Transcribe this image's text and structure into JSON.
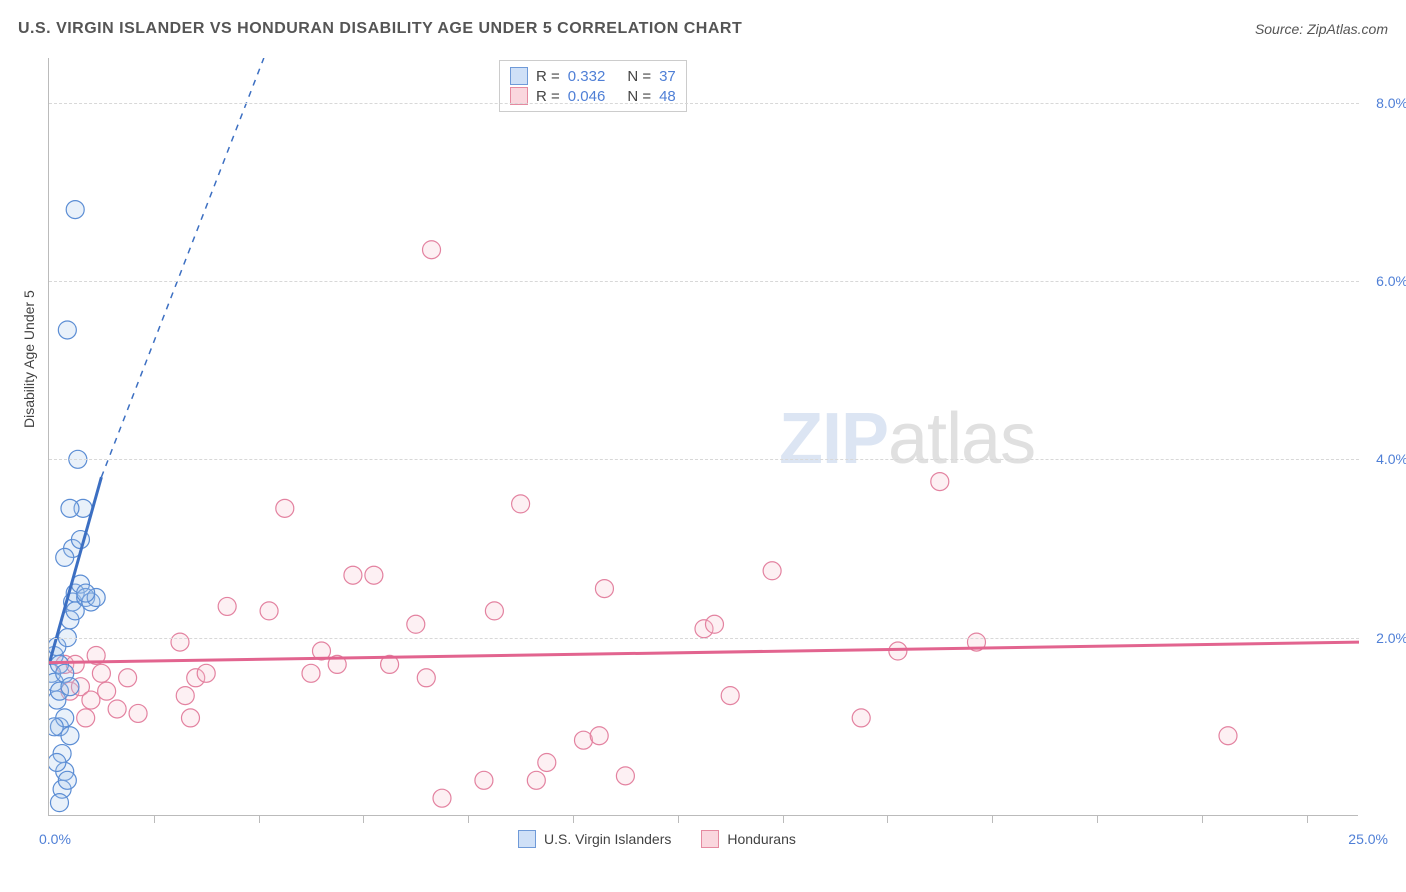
{
  "header": {
    "title": "U.S. VIRGIN ISLANDER VS HONDURAN DISABILITY AGE UNDER 5 CORRELATION CHART",
    "source": "Source: ZipAtlas.com"
  },
  "chart": {
    "type": "scatter",
    "background_color": "#ffffff",
    "grid_color": "#d8d8d8",
    "axis_color": "#bbbbbb",
    "label_color": "#424242",
    "tick_label_color": "#4f7fd6",
    "ylabel": "Disability Age Under 5",
    "label_fontsize": 14,
    "xlim": [
      0,
      25
    ],
    "ylim": [
      0,
      8.5
    ],
    "y_ticks": [
      2.0,
      4.0,
      6.0,
      8.0
    ],
    "y_tick_labels": [
      "2.0%",
      "4.0%",
      "6.0%",
      "8.0%"
    ],
    "x_min_label": "0.0%",
    "x_max_label": "25.0%",
    "x_tick_positions": [
      2,
      4,
      6,
      8,
      10,
      12,
      14,
      16,
      18,
      20,
      22,
      24
    ],
    "marker_radius": 9,
    "marker_stroke_width": 1.2,
    "marker_fill_opacity": 0.25,
    "trend_line_width": 3,
    "watermark": {
      "text_bold": "ZIP",
      "text_rest": "atlas"
    }
  },
  "stats_legend": {
    "rows": [
      {
        "swatch_fill": "#cfe0f7",
        "swatch_border": "#6f9ad8",
        "r_label": "R  =",
        "r_val": "0.332",
        "n_label": "N  =",
        "n_val": "37"
      },
      {
        "swatch_fill": "#fad7de",
        "swatch_border": "#e58aa0",
        "r_label": "R  =",
        "r_val": "0.046",
        "n_label": "N  =",
        "n_val": "48"
      }
    ]
  },
  "series_legend": {
    "items": [
      {
        "swatch_fill": "#cfe0f7",
        "swatch_border": "#6f9ad8",
        "label": "U.S. Virgin Islanders"
      },
      {
        "swatch_fill": "#fad7de",
        "swatch_border": "#e58aa0",
        "label": "Hondurans"
      }
    ]
  },
  "series": [
    {
      "name": "U.S. Virgin Islanders",
      "fill": "#a9c7ec",
      "stroke": "#5b8dd4",
      "trend_color": "#3c6fc2",
      "trend": {
        "x1": 0.0,
        "y1": 1.7,
        "x2_solid": 1.0,
        "y2_solid": 3.8,
        "x2_dash": 4.1,
        "y2_dash": 8.5
      },
      "points": [
        [
          0.05,
          1.6
        ],
        [
          0.1,
          1.5
        ],
        [
          0.1,
          1.8
        ],
        [
          0.15,
          1.3
        ],
        [
          0.15,
          1.9
        ],
        [
          0.2,
          1.0
        ],
        [
          0.2,
          1.4
        ],
        [
          0.2,
          1.7
        ],
        [
          0.25,
          0.3
        ],
        [
          0.25,
          0.7
        ],
        [
          0.3,
          0.5
        ],
        [
          0.3,
          1.1
        ],
        [
          0.3,
          1.6
        ],
        [
          0.35,
          0.4
        ],
        [
          0.35,
          2.0
        ],
        [
          0.4,
          0.9
        ],
        [
          0.4,
          2.2
        ],
        [
          0.45,
          2.4
        ],
        [
          0.45,
          3.0
        ],
        [
          0.5,
          2.3
        ],
        [
          0.5,
          2.5
        ],
        [
          0.6,
          2.6
        ],
        [
          0.6,
          3.1
        ],
        [
          0.65,
          3.45
        ],
        [
          0.7,
          2.45
        ],
        [
          0.8,
          2.4
        ],
        [
          0.4,
          3.45
        ],
        [
          0.35,
          5.45
        ],
        [
          0.9,
          2.45
        ],
        [
          0.55,
          4.0
        ],
        [
          0.7,
          2.5
        ],
        [
          0.3,
          2.9
        ],
        [
          0.5,
          6.8
        ],
        [
          0.2,
          0.15
        ],
        [
          0.15,
          0.6
        ],
        [
          0.1,
          1.0
        ],
        [
          0.4,
          1.45
        ]
      ]
    },
    {
      "name": "Hondurans",
      "fill": "#f6c3cf",
      "stroke": "#e382a0",
      "trend_color": "#e2648f",
      "trend": {
        "x1": 0.0,
        "y1": 1.72,
        "x2_solid": 25.0,
        "y2_solid": 1.95
      },
      "points": [
        [
          0.3,
          1.7
        ],
        [
          0.4,
          1.4
        ],
        [
          0.5,
          1.7
        ],
        [
          0.6,
          1.45
        ],
        [
          0.7,
          1.1
        ],
        [
          0.8,
          1.3
        ],
        [
          1.0,
          1.6
        ],
        [
          1.1,
          1.4
        ],
        [
          1.3,
          1.2
        ],
        [
          1.5,
          1.55
        ],
        [
          2.5,
          1.95
        ],
        [
          2.6,
          1.35
        ],
        [
          2.7,
          1.1
        ],
        [
          2.8,
          1.55
        ],
        [
          3.0,
          1.6
        ],
        [
          3.4,
          2.35
        ],
        [
          4.2,
          2.3
        ],
        [
          4.5,
          3.45
        ],
        [
          5.0,
          1.6
        ],
        [
          5.2,
          1.85
        ],
        [
          5.5,
          1.7
        ],
        [
          5.8,
          2.7
        ],
        [
          6.2,
          2.7
        ],
        [
          6.5,
          1.7
        ],
        [
          7.0,
          2.15
        ],
        [
          7.2,
          1.55
        ],
        [
          7.3,
          6.35
        ],
        [
          7.5,
          0.2
        ],
        [
          8.3,
          0.4
        ],
        [
          8.5,
          2.3
        ],
        [
          9.0,
          3.5
        ],
        [
          9.3,
          0.4
        ],
        [
          9.5,
          0.6
        ],
        [
          10.2,
          0.85
        ],
        [
          10.5,
          0.9
        ],
        [
          10.6,
          2.55
        ],
        [
          11.0,
          0.45
        ],
        [
          12.5,
          2.1
        ],
        [
          12.7,
          2.15
        ],
        [
          13.0,
          1.35
        ],
        [
          13.8,
          2.75
        ],
        [
          15.5,
          1.1
        ],
        [
          16.2,
          1.85
        ],
        [
          17.0,
          3.75
        ],
        [
          17.7,
          1.95
        ],
        [
          22.5,
          0.9
        ],
        [
          0.9,
          1.8
        ],
        [
          1.7,
          1.15
        ]
      ]
    }
  ]
}
